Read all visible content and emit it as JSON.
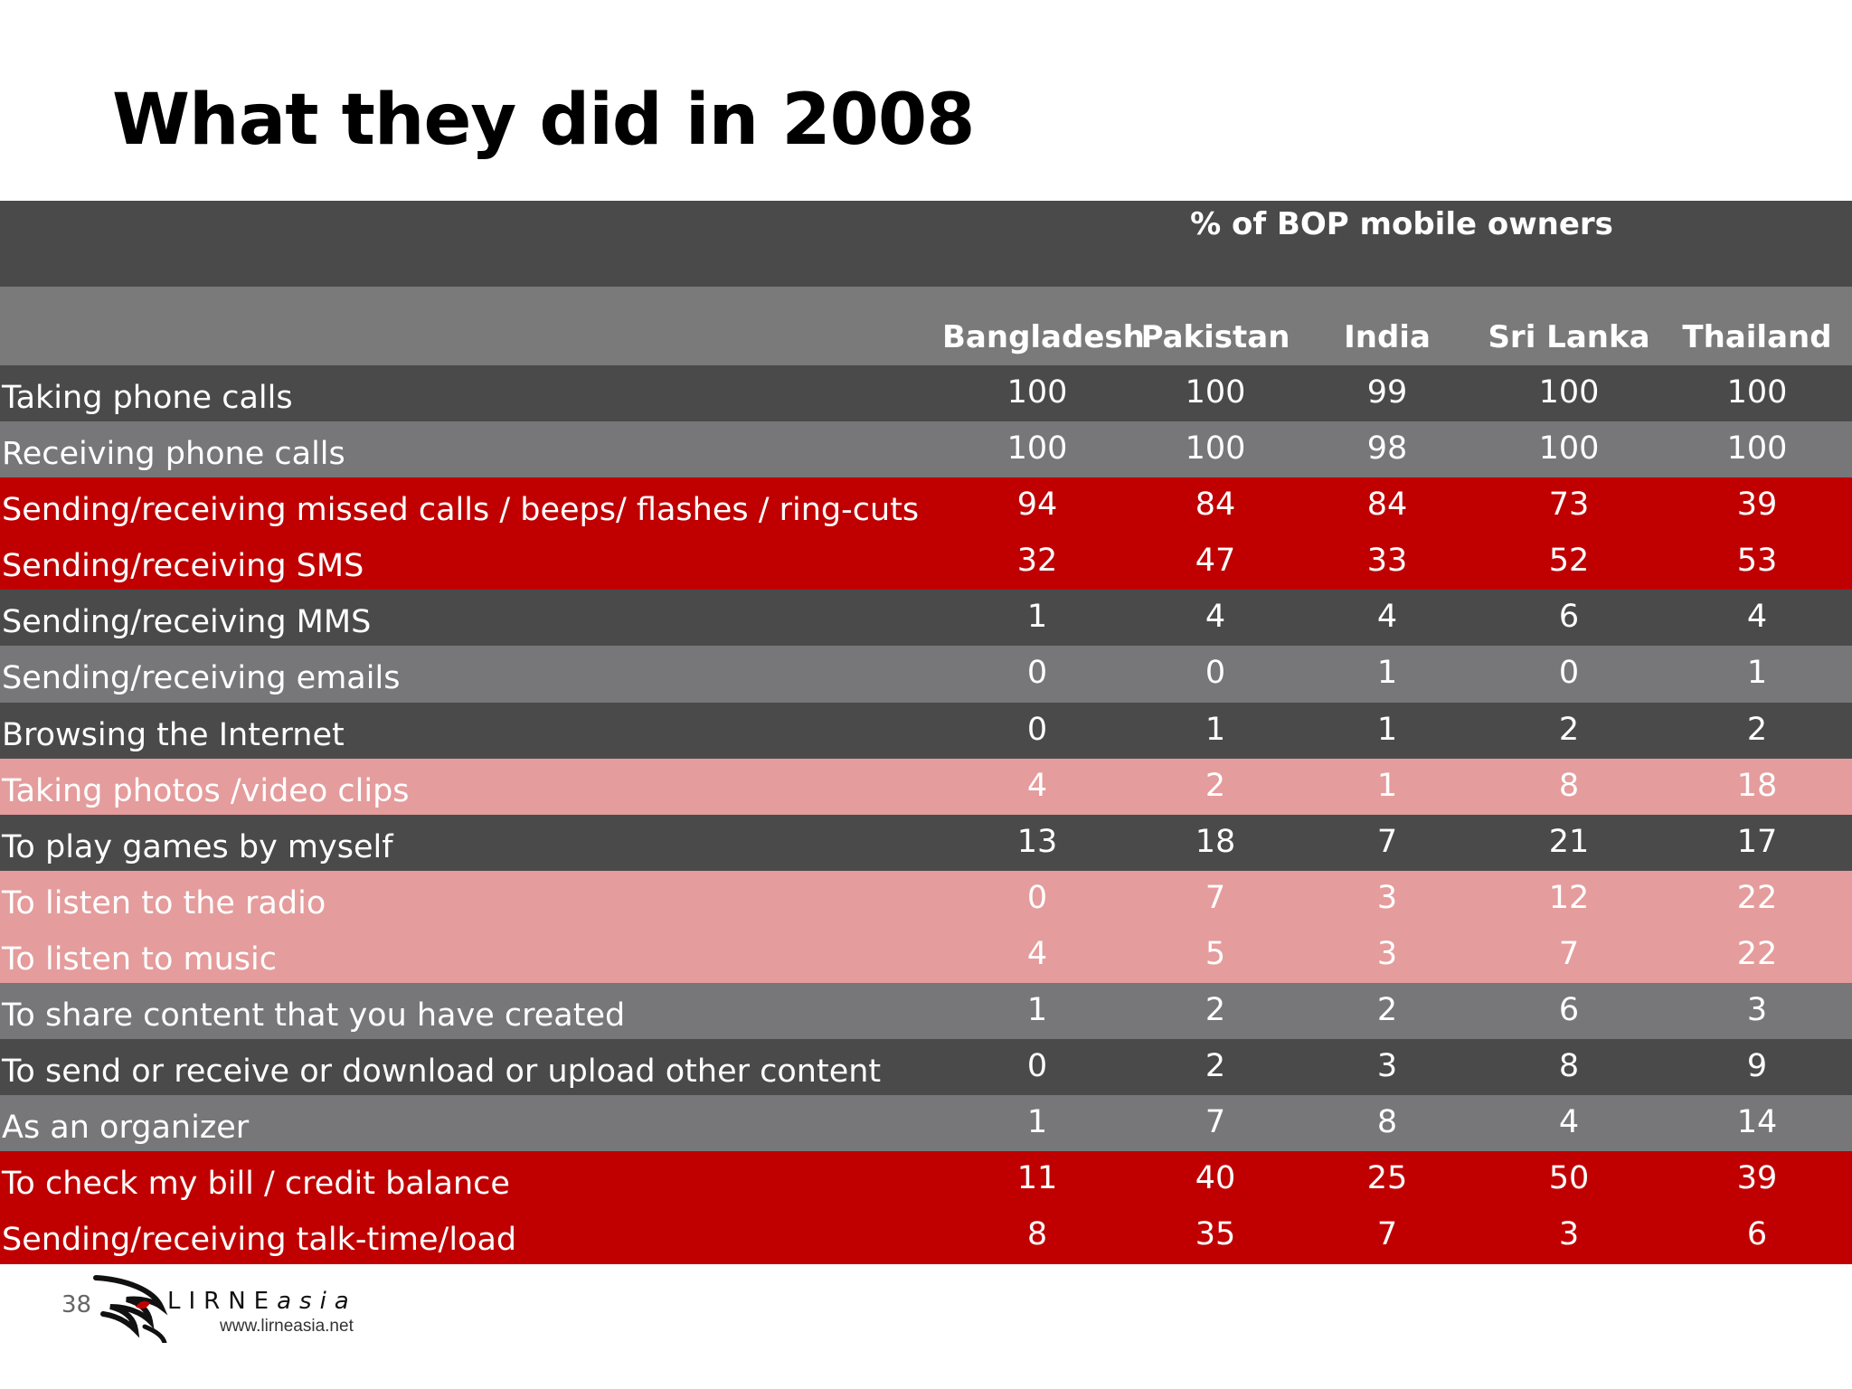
{
  "slide": {
    "title": "What they did in 2008",
    "page_number": "38",
    "logo": {
      "brand_main": "LIRNE",
      "brand_suffix": "asia",
      "url": "www.lirneasia.net"
    }
  },
  "colors": {
    "dark_gray": "#4a4a4b",
    "mid_gray": "#77777a",
    "red": "#c00000",
    "pink": "#e59c9c"
  },
  "chart_data": {
    "type": "table",
    "spanning_header": "% of BOP mobile owners",
    "columns": [
      "Bangladesh",
      "Pakistan",
      "India",
      "Sri Lanka",
      "Thailand"
    ],
    "rows": [
      {
        "label": "Taking phone calls",
        "values": [
          100,
          100,
          99,
          100,
          100
        ],
        "style": "dark"
      },
      {
        "label": "Receiving phone calls",
        "values": [
          100,
          100,
          98,
          100,
          100
        ],
        "style": "mid"
      },
      {
        "label": "Sending/receiving missed calls / beeps/ flashes / ring-cuts",
        "values": [
          94,
          84,
          84,
          73,
          39
        ],
        "style": "red"
      },
      {
        "label": "Sending/receiving SMS",
        "values": [
          32,
          47,
          33,
          52,
          53
        ],
        "style": "red"
      },
      {
        "label": "Sending/receiving MMS",
        "values": [
          1,
          4,
          4,
          6,
          4
        ],
        "style": "dark"
      },
      {
        "label": "Sending/receiving emails",
        "values": [
          0,
          0,
          1,
          0,
          1
        ],
        "style": "mid"
      },
      {
        "label": "Browsing the Internet",
        "values": [
          0,
          1,
          1,
          2,
          2
        ],
        "style": "dark"
      },
      {
        "label": "Taking photos /video clips",
        "values": [
          4,
          2,
          1,
          8,
          18
        ],
        "style": "pink"
      },
      {
        "label": "To play games by myself",
        "values": [
          13,
          18,
          7,
          21,
          17
        ],
        "style": "dark"
      },
      {
        "label": "To listen to the radio",
        "values": [
          0,
          7,
          3,
          12,
          22
        ],
        "style": "pink"
      },
      {
        "label": "To listen to music",
        "values": [
          4,
          5,
          3,
          7,
          22
        ],
        "style": "pink"
      },
      {
        "label": "To share content that you have created",
        "values": [
          1,
          2,
          2,
          6,
          3
        ],
        "style": "mid"
      },
      {
        "label": "To send or receive or download or upload other content",
        "values": [
          0,
          2,
          3,
          8,
          9
        ],
        "style": "dark"
      },
      {
        "label": "As an organizer",
        "values": [
          1,
          7,
          8,
          4,
          14
        ],
        "style": "mid"
      },
      {
        "label": "To check my bill / credit balance",
        "values": [
          11,
          40,
          25,
          50,
          39
        ],
        "style": "red"
      },
      {
        "label": "Sending/receiving talk-time/load",
        "values": [
          8,
          35,
          7,
          3,
          6
        ],
        "style": "red"
      }
    ]
  }
}
